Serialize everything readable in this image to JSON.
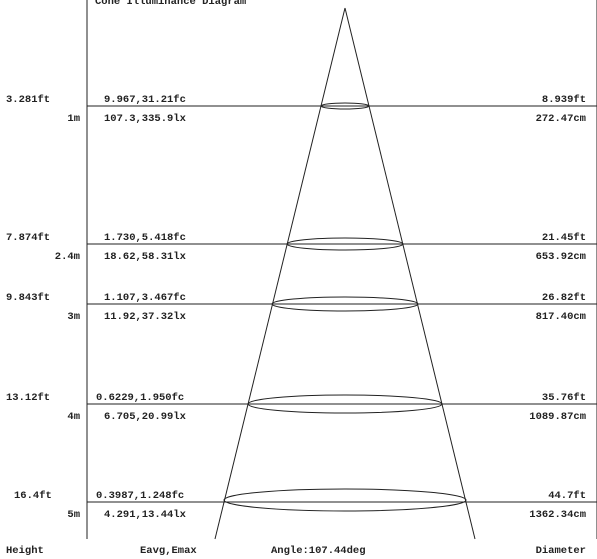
{
  "header_clip": "Cone Illuminance Diagram",
  "footer": {
    "height": "Height",
    "illum": "Eavg,Emax",
    "angle": "Angle:107.44deg",
    "diameter": "Diameter"
  },
  "rows": [
    {
      "h_ft": "3.281ft",
      "h_m": "1m",
      "fc": "9.967,31.21fc",
      "lx": "107.3,335.9lx",
      "d_ft": "8.939ft",
      "d_cm": "272.47cm"
    },
    {
      "h_ft": "7.874ft",
      "h_m": "2.4m",
      "fc": "1.730,5.418fc",
      "lx": "18.62,58.31lx",
      "d_ft": "21.45ft",
      "d_cm": "653.92cm"
    },
    {
      "h_ft": "9.843ft",
      "h_m": "3m",
      "fc": "1.107,3.467fc",
      "lx": "11.92,37.32lx",
      "d_ft": "26.82ft",
      "d_cm": "817.40cm"
    },
    {
      "h_ft": "13.12ft",
      "h_m": "4m",
      "fc": "0.6229,1.950fc",
      "lx": "6.705,20.99lx",
      "d_ft": "35.76ft",
      "d_cm": "1089.87cm"
    },
    {
      "h_ft": "16.4ft",
      "h_m": "5m",
      "fc": "0.3987,1.248fc",
      "lx": "4.291,13.44lx",
      "d_ft": "44.7ft",
      "d_cm": "1362.34cm"
    }
  ]
}
